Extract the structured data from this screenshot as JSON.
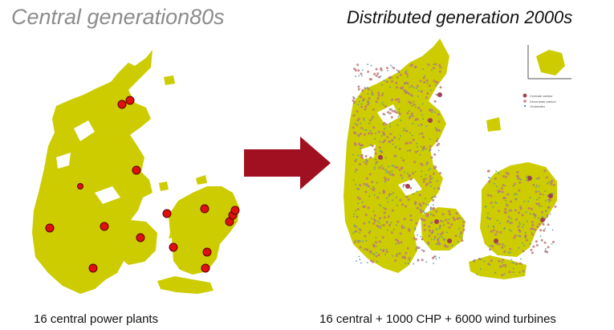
{
  "slide": {
    "left_title": "Central generation80s",
    "right_title": "Distributed generation 2000s",
    "left_caption": "16 central power plants",
    "right_caption": "16 central + 1000 CHP + 6000 wind turbines"
  },
  "colors": {
    "land": "#cccc00",
    "central_plant": "#e01010",
    "arrow": "#a01020",
    "chp_dot": "#c07878",
    "wind_dot": "#4a8fb0"
  },
  "left_map": {
    "plant_count": 16
  },
  "right_map": {
    "legend": [
      "Centrale værker",
      "Decentrale værker",
      "Vindmøller"
    ]
  },
  "icons": {
    "arrow": "right-arrow-icon"
  }
}
